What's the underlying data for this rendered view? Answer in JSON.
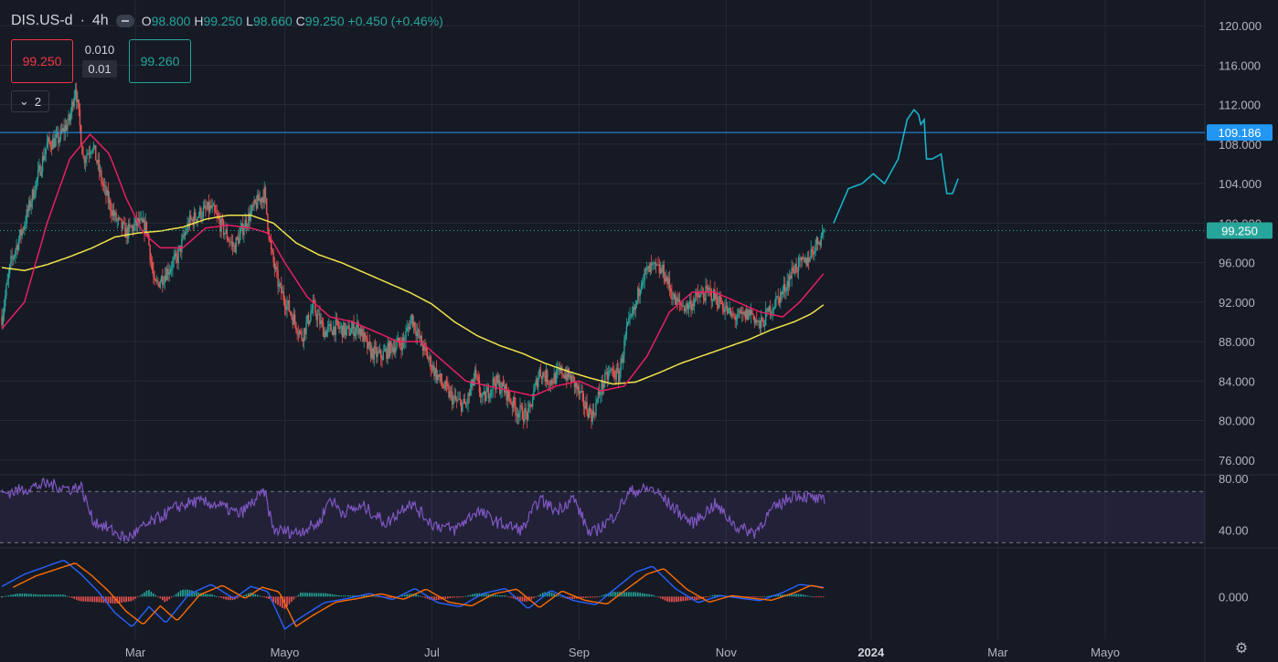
{
  "header": {
    "symbol": "DIS.US-d",
    "interval": "4h",
    "open_label": "O",
    "open": "98.800",
    "high_label": "H",
    "high": "99.250",
    "low_label": "L",
    "low": "98.660",
    "close_label": "C",
    "close": "99.250",
    "change": "+0.450 (+0.46%)"
  },
  "trade": {
    "bid": "99.250",
    "ask": "99.260",
    "spread": "0.010",
    "lot": "0.01"
  },
  "collapse_label": "2",
  "colors": {
    "bg": "#161a25",
    "grid": "#262a36",
    "up": "#26a69a",
    "down": "#ef5350",
    "ma_fast": "#e91e63",
    "ma_slow": "#f2e34a",
    "hline": "#2196f3",
    "rsi": "#7e57c2",
    "macd": "#2962ff",
    "signal": "#ff6d00",
    "drawing": "#1ab2c9"
  },
  "chart_data": [
    {
      "type": "candlestick",
      "name": "price",
      "y_ticks": [
        "120.000",
        "116.000",
        "112.000",
        "108.000",
        "104.000",
        "100.000",
        "96.000",
        "92.000",
        "88.000",
        "84.000",
        "80.000",
        "76.000"
      ],
      "ylim": [
        74.5,
        121.5
      ],
      "x_ticks": [
        "Mar",
        "Mayo",
        "Jul",
        "Sep",
        "Nov",
        "2024",
        "Mar",
        "Mayo"
      ],
      "horizontal_line": {
        "value": 109.186,
        "label": "109.186"
      },
      "last_price": {
        "value": 99.25,
        "label": "99.250"
      },
      "close_path": [
        {
          "i": 0,
          "v": 90.5
        },
        {
          "i": 8,
          "v": 96.0
        },
        {
          "i": 20,
          "v": 100.0
        },
        {
          "i": 30,
          "v": 104.0
        },
        {
          "i": 40,
          "v": 108.0
        },
        {
          "i": 50,
          "v": 108.5
        },
        {
          "i": 60,
          "v": 110.5
        },
        {
          "i": 65,
          "v": 114.0
        },
        {
          "i": 72,
          "v": 106.5
        },
        {
          "i": 80,
          "v": 108.0
        },
        {
          "i": 90,
          "v": 103.5
        },
        {
          "i": 100,
          "v": 100.5
        },
        {
          "i": 110,
          "v": 99.0
        },
        {
          "i": 120,
          "v": 100.0
        },
        {
          "i": 128,
          "v": 99.5
        },
        {
          "i": 135,
          "v": 93.5
        },
        {
          "i": 145,
          "v": 95.0
        },
        {
          "i": 155,
          "v": 96.5
        },
        {
          "i": 165,
          "v": 100.0
        },
        {
          "i": 175,
          "v": 101.0
        },
        {
          "i": 185,
          "v": 101.5
        },
        {
          "i": 195,
          "v": 99.5
        },
        {
          "i": 205,
          "v": 97.5
        },
        {
          "i": 215,
          "v": 100.0
        },
        {
          "i": 225,
          "v": 102.0
        },
        {
          "i": 232,
          "v": 103.0
        },
        {
          "i": 238,
          "v": 97.0
        },
        {
          "i": 245,
          "v": 93.5
        },
        {
          "i": 255,
          "v": 91.0
        },
        {
          "i": 265,
          "v": 88.5
        },
        {
          "i": 275,
          "v": 91.5
        },
        {
          "i": 285,
          "v": 89.0
        },
        {
          "i": 295,
          "v": 89.5
        },
        {
          "i": 305,
          "v": 89.0
        },
        {
          "i": 315,
          "v": 89.5
        },
        {
          "i": 325,
          "v": 87.0
        },
        {
          "i": 335,
          "v": 86.5
        },
        {
          "i": 345,
          "v": 87.5
        },
        {
          "i": 355,
          "v": 88.0
        },
        {
          "i": 362,
          "v": 90.5
        },
        {
          "i": 370,
          "v": 88.0
        },
        {
          "i": 380,
          "v": 85.5
        },
        {
          "i": 390,
          "v": 83.5
        },
        {
          "i": 400,
          "v": 82.0
        },
        {
          "i": 410,
          "v": 81.5
        },
        {
          "i": 418,
          "v": 84.5
        },
        {
          "i": 425,
          "v": 82.0
        },
        {
          "i": 435,
          "v": 84.0
        },
        {
          "i": 445,
          "v": 83.0
        },
        {
          "i": 455,
          "v": 81.0
        },
        {
          "i": 465,
          "v": 80.5
        },
        {
          "i": 475,
          "v": 85.0
        },
        {
          "i": 485,
          "v": 84.0
        },
        {
          "i": 495,
          "v": 85.0
        },
        {
          "i": 505,
          "v": 84.0
        },
        {
          "i": 515,
          "v": 81.5
        },
        {
          "i": 522,
          "v": 80.5
        },
        {
          "i": 530,
          "v": 83.5
        },
        {
          "i": 538,
          "v": 85.0
        },
        {
          "i": 545,
          "v": 84.5
        },
        {
          "i": 552,
          "v": 89.0
        },
        {
          "i": 560,
          "v": 91.5
        },
        {
          "i": 565,
          "v": 94.5
        },
        {
          "i": 575,
          "v": 95.5
        },
        {
          "i": 585,
          "v": 95.0
        },
        {
          "i": 595,
          "v": 92.0
        },
        {
          "i": 605,
          "v": 91.5
        },
        {
          "i": 615,
          "v": 92.5
        },
        {
          "i": 625,
          "v": 93.0
        },
        {
          "i": 635,
          "v": 92.0
        },
        {
          "i": 645,
          "v": 90.5
        },
        {
          "i": 655,
          "v": 90.5
        },
        {
          "i": 662,
          "v": 91.0
        },
        {
          "i": 670,
          "v": 89.5
        },
        {
          "i": 680,
          "v": 91.5
        },
        {
          "i": 690,
          "v": 93.0
        },
        {
          "i": 700,
          "v": 95.5
        },
        {
          "i": 710,
          "v": 96.0
        },
        {
          "i": 720,
          "v": 98.0
        },
        {
          "i": 727,
          "v": 99.25
        }
      ],
      "ma_fast_path": [
        {
          "i": 0,
          "v": 89.3
        },
        {
          "i": 20,
          "v": 92.0
        },
        {
          "i": 40,
          "v": 100.0
        },
        {
          "i": 60,
          "v": 106.5
        },
        {
          "i": 78,
          "v": 109.0
        },
        {
          "i": 95,
          "v": 107.0
        },
        {
          "i": 110,
          "v": 102.5
        },
        {
          "i": 125,
          "v": 99.0
        },
        {
          "i": 140,
          "v": 97.5
        },
        {
          "i": 160,
          "v": 97.5
        },
        {
          "i": 180,
          "v": 99.5
        },
        {
          "i": 200,
          "v": 99.8
        },
        {
          "i": 220,
          "v": 99.5
        },
        {
          "i": 235,
          "v": 99.0
        },
        {
          "i": 250,
          "v": 96.0
        },
        {
          "i": 270,
          "v": 92.5
        },
        {
          "i": 290,
          "v": 90.5
        },
        {
          "i": 310,
          "v": 90.0
        },
        {
          "i": 330,
          "v": 89.0
        },
        {
          "i": 350,
          "v": 88.0
        },
        {
          "i": 370,
          "v": 88.0
        },
        {
          "i": 390,
          "v": 86.0
        },
        {
          "i": 410,
          "v": 84.0
        },
        {
          "i": 430,
          "v": 83.5
        },
        {
          "i": 450,
          "v": 83.0
        },
        {
          "i": 470,
          "v": 82.5
        },
        {
          "i": 490,
          "v": 83.5
        },
        {
          "i": 510,
          "v": 84.0
        },
        {
          "i": 530,
          "v": 83.0
        },
        {
          "i": 550,
          "v": 83.5
        },
        {
          "i": 570,
          "v": 86.5
        },
        {
          "i": 590,
          "v": 91.0
        },
        {
          "i": 610,
          "v": 93.0
        },
        {
          "i": 630,
          "v": 93.0
        },
        {
          "i": 650,
          "v": 92.0
        },
        {
          "i": 670,
          "v": 91.0
        },
        {
          "i": 690,
          "v": 90.5
        },
        {
          "i": 705,
          "v": 92.0
        },
        {
          "i": 727,
          "v": 95.0
        }
      ],
      "ma_slow_path": [
        {
          "i": 0,
          "v": 95.5
        },
        {
          "i": 20,
          "v": 95.2
        },
        {
          "i": 40,
          "v": 95.8
        },
        {
          "i": 60,
          "v": 96.6
        },
        {
          "i": 80,
          "v": 97.5
        },
        {
          "i": 100,
          "v": 98.6
        },
        {
          "i": 120,
          "v": 99.0
        },
        {
          "i": 140,
          "v": 99.2
        },
        {
          "i": 160,
          "v": 99.6
        },
        {
          "i": 180,
          "v": 100.4
        },
        {
          "i": 200,
          "v": 100.8
        },
        {
          "i": 220,
          "v": 100.8
        },
        {
          "i": 240,
          "v": 100.0
        },
        {
          "i": 260,
          "v": 98.0
        },
        {
          "i": 280,
          "v": 96.8
        },
        {
          "i": 300,
          "v": 96.0
        },
        {
          "i": 320,
          "v": 95.0
        },
        {
          "i": 340,
          "v": 94.0
        },
        {
          "i": 360,
          "v": 93.0
        },
        {
          "i": 380,
          "v": 91.8
        },
        {
          "i": 400,
          "v": 90.0
        },
        {
          "i": 420,
          "v": 88.6
        },
        {
          "i": 440,
          "v": 87.6
        },
        {
          "i": 460,
          "v": 86.8
        },
        {
          "i": 480,
          "v": 85.8
        },
        {
          "i": 500,
          "v": 85.0
        },
        {
          "i": 520,
          "v": 84.3
        },
        {
          "i": 540,
          "v": 83.7
        },
        {
          "i": 560,
          "v": 83.9
        },
        {
          "i": 580,
          "v": 84.8
        },
        {
          "i": 600,
          "v": 85.8
        },
        {
          "i": 620,
          "v": 86.6
        },
        {
          "i": 640,
          "v": 87.4
        },
        {
          "i": 660,
          "v": 88.2
        },
        {
          "i": 680,
          "v": 89.2
        },
        {
          "i": 700,
          "v": 90.0
        },
        {
          "i": 715,
          "v": 90.8
        },
        {
          "i": 727,
          "v": 91.8
        }
      ],
      "drawing_path": [
        {
          "i": 735,
          "v": 100.0
        },
        {
          "i": 748,
          "v": 103.5
        },
        {
          "i": 760,
          "v": 104.0
        },
        {
          "i": 770,
          "v": 105.0
        },
        {
          "i": 780,
          "v": 104.0
        },
        {
          "i": 792,
          "v": 106.5
        },
        {
          "i": 800,
          "v": 110.5
        },
        {
          "i": 806,
          "v": 111.5
        },
        {
          "i": 810,
          "v": 111.0
        },
        {
          "i": 812,
          "v": 110.0
        },
        {
          "i": 815,
          "v": 110.5
        },
        {
          "i": 817,
          "v": 106.5
        },
        {
          "i": 822,
          "v": 106.5
        },
        {
          "i": 830,
          "v": 107.0
        },
        {
          "i": 833,
          "v": 104.5
        },
        {
          "i": 835,
          "v": 103.0
        },
        {
          "i": 840,
          "v": 103.0
        },
        {
          "i": 845,
          "v": 104.5
        }
      ]
    },
    {
      "type": "line",
      "name": "rsi",
      "y_ticks": [
        "80.00",
        "40.00"
      ],
      "ylim": [
        26,
        83
      ],
      "band": [
        30,
        70
      ],
      "path": [
        {
          "i": 0,
          "v": 68
        },
        {
          "i": 20,
          "v": 72
        },
        {
          "i": 40,
          "v": 76
        },
        {
          "i": 60,
          "v": 72
        },
        {
          "i": 70,
          "v": 74
        },
        {
          "i": 80,
          "v": 48
        },
        {
          "i": 100,
          "v": 38
        },
        {
          "i": 110,
          "v": 33
        },
        {
          "i": 125,
          "v": 42
        },
        {
          "i": 140,
          "v": 50
        },
        {
          "i": 155,
          "v": 58
        },
        {
          "i": 170,
          "v": 62
        },
        {
          "i": 190,
          "v": 60
        },
        {
          "i": 210,
          "v": 52
        },
        {
          "i": 232,
          "v": 70
        },
        {
          "i": 240,
          "v": 40
        },
        {
          "i": 260,
          "v": 38
        },
        {
          "i": 280,
          "v": 45
        },
        {
          "i": 290,
          "v": 65
        },
        {
          "i": 300,
          "v": 54
        },
        {
          "i": 320,
          "v": 58
        },
        {
          "i": 340,
          "v": 45
        },
        {
          "i": 360,
          "v": 62
        },
        {
          "i": 380,
          "v": 45
        },
        {
          "i": 400,
          "v": 40
        },
        {
          "i": 420,
          "v": 55
        },
        {
          "i": 440,
          "v": 45
        },
        {
          "i": 460,
          "v": 40
        },
        {
          "i": 475,
          "v": 64
        },
        {
          "i": 490,
          "v": 55
        },
        {
          "i": 505,
          "v": 65
        },
        {
          "i": 520,
          "v": 36
        },
        {
          "i": 540,
          "v": 50
        },
        {
          "i": 555,
          "v": 70
        },
        {
          "i": 575,
          "v": 72
        },
        {
          "i": 590,
          "v": 60
        },
        {
          "i": 610,
          "v": 45
        },
        {
          "i": 630,
          "v": 60
        },
        {
          "i": 650,
          "v": 42
        },
        {
          "i": 665,
          "v": 38
        },
        {
          "i": 680,
          "v": 55
        },
        {
          "i": 700,
          "v": 68
        },
        {
          "i": 715,
          "v": 65
        },
        {
          "i": 727,
          "v": 62
        }
      ]
    },
    {
      "type": "line",
      "name": "macd",
      "y_ticks": [
        "0.000"
      ],
      "ylim": [
        -4.2,
        4.8
      ],
      "macd_path": [
        {
          "i": 0,
          "v": 1.0
        },
        {
          "i": 20,
          "v": 2.2
        },
        {
          "i": 40,
          "v": 3.0
        },
        {
          "i": 55,
          "v": 3.6
        },
        {
          "i": 70,
          "v": 2.2
        },
        {
          "i": 85,
          "v": 0.5
        },
        {
          "i": 100,
          "v": -1.6
        },
        {
          "i": 115,
          "v": -3.0
        },
        {
          "i": 130,
          "v": -1.0
        },
        {
          "i": 145,
          "v": -2.6
        },
        {
          "i": 165,
          "v": 0.2
        },
        {
          "i": 185,
          "v": 1.2
        },
        {
          "i": 205,
          "v": -0.2
        },
        {
          "i": 220,
          "v": 1.0
        },
        {
          "i": 235,
          "v": 0.5
        },
        {
          "i": 250,
          "v": -3.2
        },
        {
          "i": 265,
          "v": -2.0
        },
        {
          "i": 285,
          "v": -0.6
        },
        {
          "i": 305,
          "v": -0.2
        },
        {
          "i": 325,
          "v": 0.3
        },
        {
          "i": 345,
          "v": -0.3
        },
        {
          "i": 365,
          "v": 0.8
        },
        {
          "i": 385,
          "v": -0.6
        },
        {
          "i": 405,
          "v": -1.0
        },
        {
          "i": 425,
          "v": 0.3
        },
        {
          "i": 445,
          "v": 0.8
        },
        {
          "i": 465,
          "v": -1.2
        },
        {
          "i": 485,
          "v": 0.6
        },
        {
          "i": 505,
          "v": -0.4
        },
        {
          "i": 525,
          "v": -0.8
        },
        {
          "i": 540,
          "v": 0.6
        },
        {
          "i": 560,
          "v": 2.4
        },
        {
          "i": 575,
          "v": 3.0
        },
        {
          "i": 595,
          "v": 0.8
        },
        {
          "i": 615,
          "v": -0.6
        },
        {
          "i": 635,
          "v": 0.1
        },
        {
          "i": 655,
          "v": -0.2
        },
        {
          "i": 670,
          "v": -0.4
        },
        {
          "i": 690,
          "v": 0.4
        },
        {
          "i": 705,
          "v": 1.2
        },
        {
          "i": 727,
          "v": 0.9
        }
      ]
    }
  ]
}
